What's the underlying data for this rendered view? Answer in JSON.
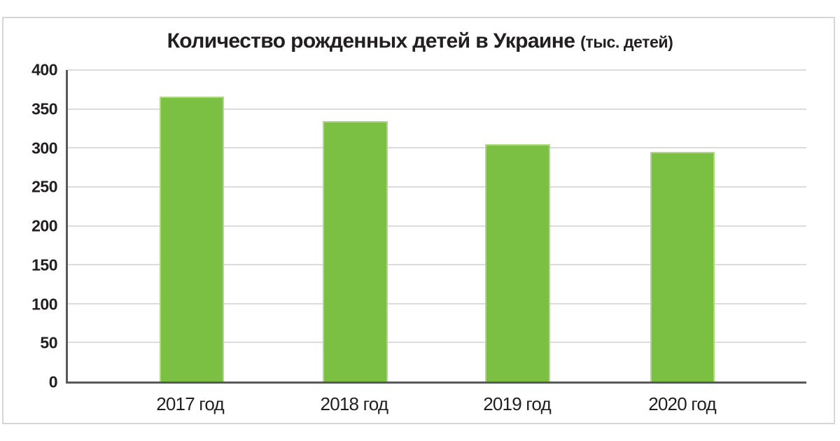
{
  "title": {
    "main": "Количество рожденных детей в Украине",
    "unit": "(тыс. детей)"
  },
  "chart_data": {
    "type": "bar",
    "title": "Количество рожденных детей в Украине (тыс. детей)",
    "categories": [
      "2017 год",
      "2018 год",
      "2019 год",
      "2020 год"
    ],
    "values": [
      366,
      334,
      305,
      295
    ],
    "xlabel": "",
    "ylabel": "",
    "ylim": [
      0,
      400
    ],
    "yticks": [
      0,
      50,
      100,
      150,
      200,
      250,
      300,
      350,
      400
    ],
    "grid": true,
    "legend": false,
    "units": "тыс. детей",
    "bar_color": "#7bc043"
  },
  "colors": {
    "bar": "#7bc043",
    "bar_edge": "#acd981",
    "axis": "#58595b",
    "gridline": "#dcdcdc",
    "text": "#231f20",
    "frame_border": "#d4d6d7",
    "background": "#ffffff"
  }
}
